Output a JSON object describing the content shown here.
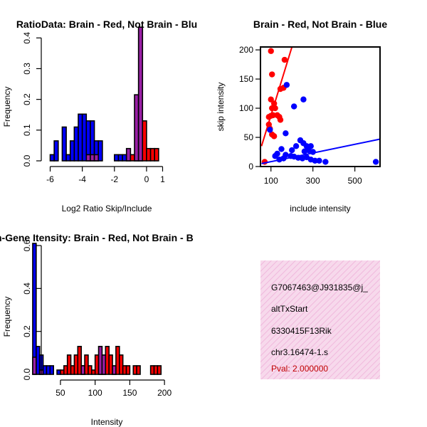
{
  "colors": {
    "red": "#ff0000",
    "blue": "#0000ff",
    "overlap": "#9a1fa6",
    "panel": "#f7d9ec",
    "hatch": "#f0b8dc"
  },
  "chart_data": [
    {
      "type": "bar",
      "title": "RatioData: Brain - Red, Not Brain - Blu",
      "xlabel": "Log2 Ratio Skip/Include",
      "ylabel": "Frequency",
      "xlim": [
        -6.2,
        1.2
      ],
      "ylim": [
        0,
        0.44
      ],
      "xticks": [
        -6,
        -4,
        -2,
        0,
        1
      ],
      "xtick_labels": [
        "-6",
        "-4",
        "-2",
        "0",
        "1"
      ],
      "yticks": [
        0.0,
        0.1,
        0.2,
        0.3,
        0.4
      ],
      "ytick_labels": [
        "0.0",
        "0.1",
        "0.2",
        "0.3",
        "0.4"
      ],
      "bin_width": 0.25,
      "series": [
        {
          "name": "Not Brain",
          "color": "blue",
          "bins": [
            [
              -6.0,
              0.02
            ],
            [
              -5.75,
              0.065
            ],
            [
              -5.25,
              0.11
            ],
            [
              -5.0,
              0.02
            ],
            [
              -4.75,
              0.065
            ],
            [
              -4.5,
              0.11
            ],
            [
              -4.25,
              0.152
            ],
            [
              -4.0,
              0.152
            ],
            [
              -3.75,
              0.13
            ],
            [
              -3.5,
              0.13
            ],
            [
              -3.25,
              0.065
            ],
            [
              -3.0,
              0.065
            ],
            [
              -2.0,
              0.02
            ],
            [
              -1.75,
              0.02
            ],
            [
              -1.5,
              0.02
            ],
            [
              -1.25,
              0.02
            ],
            [
              -0.75,
              0.02
            ],
            [
              -0.5,
              0.02
            ]
          ]
        },
        {
          "name": "Brain",
          "color": "red",
          "bins": [
            [
              -3.75,
              0.02
            ],
            [
              -3.5,
              0.02
            ],
            [
              -3.25,
              0.02
            ],
            [
              -1.25,
              0.04
            ],
            [
              -1.0,
              0.02
            ],
            [
              -0.75,
              0.215
            ],
            [
              -0.5,
              0.435
            ],
            [
              -0.25,
              0.13
            ],
            [
              0.0,
              0.04
            ],
            [
              0.25,
              0.04
            ],
            [
              0.5,
              0.04
            ]
          ]
        }
      ]
    },
    {
      "type": "scatter",
      "title": "Brain - Red, Not Brain - Blue",
      "xlabel": "include intensity",
      "ylabel": "skip intensity",
      "xlim": [
        50,
        620
      ],
      "ylim": [
        0,
        205
      ],
      "xticks": [
        100,
        300,
        500
      ],
      "xtick_labels": [
        "100",
        "300",
        "500"
      ],
      "yticks": [
        0,
        50,
        100,
        150,
        200
      ],
      "ytick_labels": [
        "0",
        "50",
        "100",
        "150",
        "200"
      ],
      "series": [
        {
          "name": "Brain",
          "color": "red",
          "points": [
            [
              100,
              198
            ],
            [
              165,
              183
            ],
            [
              105,
              158
            ],
            [
              145,
              133
            ],
            [
              160,
              135
            ],
            [
              100,
              115
            ],
            [
              115,
              108
            ],
            [
              105,
              100
            ],
            [
              120,
              100
            ],
            [
              90,
              85
            ],
            [
              100,
              87
            ],
            [
              110,
              88
            ],
            [
              130,
              88
            ],
            [
              140,
              85
            ],
            [
              145,
              80
            ],
            [
              90,
              72
            ],
            [
              95,
              65
            ],
            [
              70,
              8
            ],
            [
              105,
              55
            ],
            [
              115,
              52
            ]
          ],
          "fit": [
            [
              55,
              35
            ],
            [
              200,
              205
            ]
          ]
        },
        {
          "name": "Not Brain",
          "color": "blue",
          "points": [
            [
              175,
              140
            ],
            [
              255,
              115
            ],
            [
              210,
              103
            ],
            [
              95,
              63
            ],
            [
              170,
              57
            ],
            [
              240,
              45
            ],
            [
              255,
              40
            ],
            [
              220,
              35
            ],
            [
              270,
              35
            ],
            [
              290,
              35
            ],
            [
              150,
              30
            ],
            [
              200,
              28
            ],
            [
              260,
              26
            ],
            [
              280,
              28
            ],
            [
              300,
              25
            ],
            [
              130,
              22
            ],
            [
              170,
              20
            ],
            [
              195,
              18
            ],
            [
              210,
              17
            ],
            [
              230,
              15
            ],
            [
              250,
              14
            ],
            [
              270,
              16
            ],
            [
              290,
              12
            ],
            [
              310,
              10
            ],
            [
              330,
              10
            ],
            [
              360,
              8
            ],
            [
              160,
              14
            ],
            [
              140,
              12
            ],
            [
              120,
              18
            ],
            [
              600,
              8
            ]
          ],
          "fit": [
            [
              55,
              5
            ],
            [
              620,
              47
            ]
          ]
        }
      ]
    },
    {
      "type": "bar",
      "title": "Exon-Gene Itensity: Brain - Red, Not Brain - B",
      "xlabel": "Intensity",
      "ylabel": "Frequency",
      "xlim": [
        8,
        205
      ],
      "ylim": [
        0,
        0.63
      ],
      "xticks": [
        50,
        100,
        150,
        200
      ],
      "xtick_labels": [
        "50",
        "100",
        "150",
        "200"
      ],
      "yticks": [
        0.0,
        0.2,
        0.4,
        0.6
      ],
      "ytick_labels": [
        "0.0",
        "0.2",
        "0.4",
        "0.6"
      ],
      "bin_width": 5,
      "series": [
        {
          "name": "Not Brain",
          "color": "blue",
          "bins": [
            [
              10,
              0.61
            ],
            [
              15,
              0.13
            ],
            [
              20,
              0.09
            ],
            [
              25,
              0.04
            ],
            [
              30,
              0.04
            ],
            [
              35,
              0.04
            ],
            [
              45,
              0.02
            ],
            [
              80,
              0.04
            ],
            [
              105,
              0.02
            ],
            [
              110,
              0.02
            ],
            [
              125,
              0.02
            ]
          ]
        },
        {
          "name": "Brain",
          "color": "red",
          "bins": [
            [
              10,
              0.08
            ],
            [
              20,
              0.02
            ],
            [
              50,
              0.02
            ],
            [
              55,
              0.04
            ],
            [
              60,
              0.09
            ],
            [
              65,
              0.04
            ],
            [
              70,
              0.09
            ],
            [
              75,
              0.13
            ],
            [
              80,
              0.04
            ],
            [
              85,
              0.09
            ],
            [
              90,
              0.04
            ],
            [
              95,
              0.02
            ],
            [
              100,
              0.09
            ],
            [
              105,
              0.13
            ],
            [
              110,
              0.09
            ],
            [
              115,
              0.13
            ],
            [
              120,
              0.09
            ],
            [
              125,
              0.04
            ],
            [
              130,
              0.13
            ],
            [
              135,
              0.09
            ],
            [
              140,
              0.04
            ],
            [
              145,
              0.04
            ],
            [
              155,
              0.04
            ],
            [
              160,
              0.04
            ],
            [
              180,
              0.04
            ],
            [
              185,
              0.04
            ],
            [
              190,
              0.04
            ]
          ]
        }
      ]
    }
  ],
  "info_panel": {
    "lines": [
      "G7067463@J931835@j_",
      "altTxStart",
      "6330415F13Rik",
      "chr3.16474-1.s"
    ],
    "pval": "Pval: 2.000000"
  }
}
